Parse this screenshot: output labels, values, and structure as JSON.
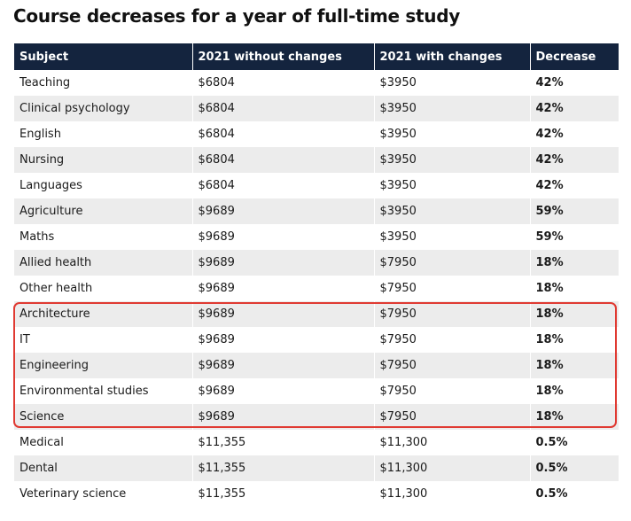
{
  "title": "Course decreases for a year of full-time study",
  "table": {
    "headers": [
      "Subject",
      "2021 without changes",
      "2021 with changes",
      "Decrease"
    ],
    "rows": [
      {
        "subject": "Teaching",
        "without": "$6804",
        "with": "$3950",
        "decrease": "42%"
      },
      {
        "subject": "Clinical psychology",
        "without": "$6804",
        "with": "$3950",
        "decrease": "42%"
      },
      {
        "subject": "English",
        "without": "$6804",
        "with": "$3950",
        "decrease": "42%"
      },
      {
        "subject": "Nursing",
        "without": "$6804",
        "with": "$3950",
        "decrease": "42%"
      },
      {
        "subject": "Languages",
        "without": "$6804",
        "with": "$3950",
        "decrease": "42%"
      },
      {
        "subject": "Agriculture",
        "without": "$9689",
        "with": "$3950",
        "decrease": "59%"
      },
      {
        "subject": "Maths",
        "without": "$9689",
        "with": "$3950",
        "decrease": "59%"
      },
      {
        "subject": "Allied health",
        "without": "$9689",
        "with": "$7950",
        "decrease": "18%"
      },
      {
        "subject": "Other health",
        "without": "$9689",
        "with": "$7950",
        "decrease": "18%"
      },
      {
        "subject": "Architecture",
        "without": "$9689",
        "with": "$7950",
        "decrease": "18%"
      },
      {
        "subject": "IT",
        "without": "$9689",
        "with": "$7950",
        "decrease": "18%"
      },
      {
        "subject": "Engineering",
        "without": "$9689",
        "with": "$7950",
        "decrease": "18%"
      },
      {
        "subject": "Environmental studies",
        "without": "$9689",
        "with": "$7950",
        "decrease": "18%"
      },
      {
        "subject": "Science",
        "without": "$9689",
        "with": "$7950",
        "decrease": "18%"
      },
      {
        "subject": "Medical",
        "without": "$11,355",
        "with": "$11,300",
        "decrease": "0.5%"
      },
      {
        "subject": "Dental",
        "without": "$11,355",
        "with": "$11,300",
        "decrease": "0.5%"
      },
      {
        "subject": "Veterinary science",
        "without": "$11,355",
        "with": "$11,300",
        "decrease": "0.5%"
      }
    ]
  },
  "highlight_color": "#e03a32",
  "header_color": "#14243e"
}
